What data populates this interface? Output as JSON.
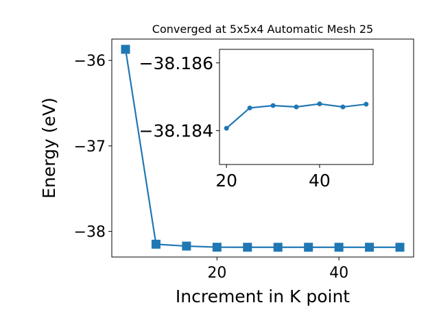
{
  "chart_data": [
    {
      "type": "line",
      "title": "Converged at 5x5x4 Automatic Mesh 25",
      "xlabel": "Increment in K point",
      "ylabel": "Energy (eV)",
      "xlim": [
        2.75,
        52.25
      ],
      "ylim": [
        -38.3,
        -35.75
      ],
      "xticks": [
        20,
        40
      ],
      "yticks": [
        -36,
        -37,
        -38
      ],
      "ytick_labels": [
        "−36",
        "−37",
        "−38"
      ],
      "marker": "square",
      "color": "#1f77b4",
      "grid": false,
      "series": [
        {
          "x": [
            5,
            10,
            15,
            20,
            25,
            30,
            35,
            40,
            45,
            50
          ],
          "y": [
            -35.87,
            -38.15,
            -38.172,
            -38.185,
            -38.1855,
            -38.1856,
            -38.1855,
            -38.1856,
            -38.1855,
            -38.1856
          ]
        }
      ]
    },
    {
      "type": "line",
      "role": "inset",
      "xlim": [
        18.5,
        51.5
      ],
      "ylim": [
        -38.183,
        -38.1864
      ],
      "xticks": [
        20,
        40
      ],
      "yticks": [
        -38.186,
        -38.184
      ],
      "ytick_labels": [
        "−38.186",
        "−38.184"
      ],
      "marker": "circle",
      "color": "#1f77b4",
      "grid": false,
      "series": [
        {
          "x": [
            20,
            25,
            30,
            35,
            40,
            45,
            50
          ],
          "y": [
            -38.18407,
            -38.18467,
            -38.18474,
            -38.1847,
            -38.18479,
            -38.1847,
            -38.18478
          ]
        }
      ]
    }
  ]
}
